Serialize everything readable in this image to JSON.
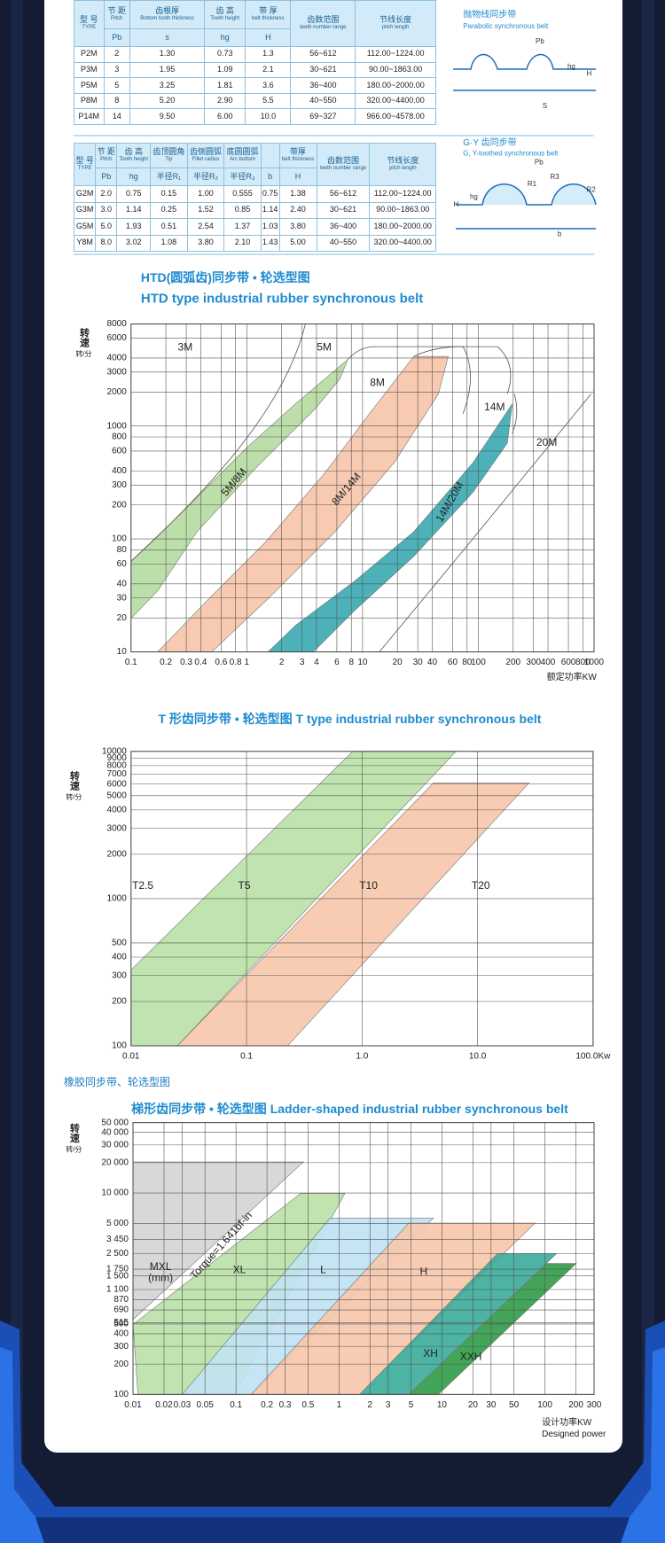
{
  "tables": [
    {
      "columns": [
        {
          "zh": "型 号",
          "en": "TYPE"
        },
        {
          "zh": "节 距",
          "en": "Pitch",
          "sym": "Pb"
        },
        {
          "zh": "齿根厚",
          "en": "Bottom tooth thickness",
          "sym": "s"
        },
        {
          "zh": "齿 高",
          "en": "Tooth height",
          "sym": "hg"
        },
        {
          "zh": "带 厚",
          "en": "belt thickness",
          "sym": "H"
        },
        {
          "zh": "齿数范围",
          "en": "teeth number range"
        },
        {
          "zh": "节线长度",
          "en": "pitch length"
        }
      ],
      "rows": [
        [
          "P2M",
          "2",
          "1.30",
          "0.73",
          "1.3",
          "56~612",
          "112.00~1224.00"
        ],
        [
          "P3M",
          "3",
          "1.95",
          "1.09",
          "2.1",
          "30~621",
          "90.00~1863.00"
        ],
        [
          "P5M",
          "5",
          "3.25",
          "1.81",
          "3.6",
          "36~400",
          "180.00~2000.00"
        ],
        [
          "P8M",
          "8",
          "5.20",
          "2.90",
          "5.5",
          "40~550",
          "320.00~4400.00"
        ],
        [
          "P14M",
          "14",
          "9.50",
          "6.00",
          "10.0",
          "69~327",
          "966.00~4578.00"
        ]
      ]
    },
    {
      "columns": [
        {
          "zh": "型 号",
          "en": "TYPE"
        },
        {
          "zh": "节 距",
          "en": "Pitch",
          "sym": "Pb"
        },
        {
          "zh": "齿 高",
          "en": "Tooth height",
          "sym": "hg"
        },
        {
          "zh": "齿顶圆角",
          "en": "Tip",
          "sym": "半径R₁"
        },
        {
          "zh": "齿侧圆弧",
          "en": "Fillet radius",
          "sym": "半径R₂"
        },
        {
          "zh": "底圆圆弧",
          "en": "Arc bottom",
          "sym": "半径R₃"
        },
        {
          "sym": "b"
        },
        {
          "zh": "带厚",
          "en": "belt thickness",
          "sym": "H"
        },
        {
          "zh": "齿数范围",
          "en": "teeth number range"
        },
        {
          "zh": "节线长度",
          "en": "pitch length"
        }
      ],
      "rows": [
        [
          "G2M",
          "2.0",
          "0.75",
          "0.15",
          "1.00",
          "0.555",
          "0.75",
          "1.38",
          "56~612",
          "112.00~1224.00"
        ],
        [
          "G3M",
          "3.0",
          "1.14",
          "0.25",
          "1.52",
          "0.85",
          "1.14",
          "2.40",
          "30~621",
          "90.00~1863.00"
        ],
        [
          "G5M",
          "5.0",
          "1.93",
          "0.51",
          "2.54",
          "1.37",
          "1.03",
          "3.80",
          "36~400",
          "180.00~2000.00"
        ],
        [
          "Y8M",
          "8.0",
          "3.02",
          "1.08",
          "3.80",
          "2.10",
          "1.43",
          "5.00",
          "40~550",
          "320.00~4400.00"
        ]
      ]
    }
  ],
  "diagrams": [
    {
      "title": "抛物线同步带",
      "subtitle": "Parabolic synchronous belt",
      "labels": [
        "Pb",
        "hg",
        "H",
        "S"
      ]
    },
    {
      "title": "G·Y 齿同步带",
      "subtitle": "G, Y-toothed synchronous belt",
      "labels": [
        "Pb",
        "R1",
        "R3",
        "R2",
        "hg",
        "H",
        "b"
      ]
    }
  ],
  "section_title": "橡胶同步带、轮选型图",
  "chart_data": [
    {
      "type": "area",
      "title": "HTD(圆弧齿)同步带 • 轮选型图",
      "subtitle": "HTD type industrial rubber synchronous belt",
      "ylabel": [
        "转速",
        "转/分"
      ],
      "xlabel": [
        "额定功率KW"
      ],
      "log": true,
      "grid": true,
      "xlim": [
        0.1,
        1000
      ],
      "ylim": [
        10,
        8000
      ],
      "xticks": [
        0.1,
        0.2,
        0.3,
        0.4,
        0.6,
        0.8,
        1,
        2,
        3,
        4,
        6,
        8,
        10,
        20,
        30,
        40,
        60,
        80,
        100,
        200,
        300,
        400,
        600,
        800,
        1000
      ],
      "yticks": [
        10,
        20,
        30,
        40,
        60,
        80,
        100,
        200,
        300,
        400,
        600,
        800,
        1000,
        2000,
        3000,
        4000,
        6000,
        8000
      ],
      "regions": [
        {
          "name": "5M/8M",
          "color": "#b5dca0"
        },
        {
          "name": "8M/14M",
          "color": "#f6c4a8"
        },
        {
          "name": "14M/20M",
          "color": "#38a9b0"
        }
      ],
      "labels": [
        "3M",
        "5M",
        "8M",
        "14M",
        "20M"
      ]
    },
    {
      "type": "area",
      "title": "T 形齿同步带 • 轮选型图  T type industrial rubber synchronous belt",
      "ylabel": [
        "转速",
        "转/分"
      ],
      "log": true,
      "grid": true,
      "xlim": [
        0.01,
        100
      ],
      "ylim": [
        100,
        10000
      ],
      "xticks": [
        0.01,
        0.1,
        {
          "value": 1,
          "label": "1.0"
        },
        {
          "value": 10,
          "label": "10.0"
        },
        {
          "value": 100,
          "label": "100.0Kw"
        }
      ],
      "yticks": [
        100,
        200,
        300,
        400,
        500,
        1000,
        2000,
        3000,
        4000,
        5000,
        6000,
        7000,
        8000,
        9000,
        10000
      ],
      "regions": [
        {
          "name": "T5",
          "color": "#b9e0a6"
        },
        {
          "name": "T10",
          "color": "#f7c6ab"
        }
      ],
      "labels": [
        "T2.5",
        "T20"
      ]
    },
    {
      "type": "area",
      "title": "梯形齿同步带 • 轮选型图  Ladder-shaped industrial rubber synchronous belt",
      "ylabel": [
        "转速",
        "转/分"
      ],
      "xlabel": [
        "设计功率KW",
        "Designed power"
      ],
      "log": true,
      "grid": true,
      "xlim": [
        0.01,
        300
      ],
      "ylim": [
        100,
        50000
      ],
      "xticks": [
        0.01,
        0.02,
        0.03,
        0.05,
        0.1,
        0.2,
        0.3,
        0.5,
        1,
        2,
        3,
        5,
        10,
        20,
        30,
        50,
        100,
        200,
        300
      ],
      "yticks": [
        100,
        200,
        300,
        400,
        500,
        515,
        690,
        870,
        {
          "value": 1100,
          "label": "1 100"
        },
        {
          "value": 1500,
          "label": "1 500"
        },
        {
          "value": 1750,
          "label": "1 750"
        },
        {
          "value": 2500,
          "label": "2 500"
        },
        {
          "value": 3450,
          "label": "3 450"
        },
        {
          "value": 5000,
          "label": "5 000"
        },
        {
          "value": 10000,
          "label": "10 000"
        },
        {
          "value": 20000,
          "label": "20 000"
        },
        {
          "value": 30000,
          "label": "30 000"
        },
        {
          "value": 40000,
          "label": "40 000"
        },
        {
          "value": 50000,
          "label": "50 000"
        }
      ],
      "regions": [
        {
          "name": "MXL",
          "color": "#d4d4d4"
        },
        {
          "name": "XL",
          "color": "#b9e0a6"
        },
        {
          "name": "L",
          "color": "#c0e2f3"
        },
        {
          "name": "H",
          "color": "#f7c6ab"
        },
        {
          "name": "XH",
          "color": "#3aab99"
        },
        {
          "name": "XXH",
          "color": "#2e9b45"
        }
      ],
      "notes": [
        "(mm)",
        "Torque=1.641bf-in"
      ]
    }
  ]
}
